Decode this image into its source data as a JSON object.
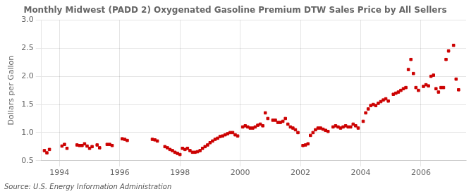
{
  "chart_data": {
    "type": "scatter",
    "title": "Monthly Midwest (PADD 2) Oxygenated Gasoline Premium DTW Sales Price by All Sellers",
    "y_label": "Dollars per Gallon",
    "annotations": [
      "Source: U.S. Energy Information Administration"
    ],
    "color": "#cc0000",
    "marker": "square",
    "grid": true,
    "xlim": [
      1993.4,
      2007.5
    ],
    "xticks": [
      1994,
      1996,
      1998,
      2000,
      2002,
      2004,
      2006
    ],
    "ylim": [
      0.5,
      3.0
    ],
    "yticks": [
      0.5,
      {
        "value": 1.0,
        "label": "1.0"
      },
      1.5,
      {
        "value": 2.0,
        "label": "2.0"
      },
      2.5,
      {
        "value": 3.0,
        "label": "3.0"
      }
    ],
    "x": [
      1993.5,
      1993.583,
      1993.667,
      1994.083,
      1994.167,
      1994.25,
      1994.583,
      1994.667,
      1994.75,
      1994.833,
      1994.917,
      1995.0,
      1995.083,
      1995.25,
      1995.333,
      1995.583,
      1995.667,
      1995.75,
      1996.083,
      1996.167,
      1996.25,
      1997.083,
      1997.167,
      1997.25,
      1997.5,
      1997.583,
      1997.667,
      1997.75,
      1997.833,
      1997.917,
      1998.0,
      1998.083,
      1998.167,
      1998.25,
      1998.333,
      1998.417,
      1998.5,
      1998.583,
      1998.667,
      1998.75,
      1998.833,
      1998.917,
      1999.0,
      1999.083,
      1999.167,
      1999.25,
      1999.333,
      1999.417,
      1999.5,
      1999.583,
      1999.667,
      1999.75,
      1999.833,
      1999.917,
      2000.083,
      2000.167,
      2000.25,
      2000.333,
      2000.417,
      2000.5,
      2000.583,
      2000.667,
      2000.75,
      2000.833,
      2000.917,
      2001.083,
      2001.167,
      2001.25,
      2001.333,
      2001.417,
      2001.5,
      2001.583,
      2001.667,
      2001.75,
      2001.833,
      2001.917,
      2002.083,
      2002.167,
      2002.25,
      2002.333,
      2002.417,
      2002.5,
      2002.583,
      2002.667,
      2002.75,
      2002.833,
      2002.917,
      2003.083,
      2003.167,
      2003.25,
      2003.333,
      2003.417,
      2003.5,
      2003.583,
      2003.667,
      2003.75,
      2003.833,
      2003.917,
      2004.083,
      2004.167,
      2004.25,
      2004.333,
      2004.417,
      2004.5,
      2004.583,
      2004.667,
      2004.75,
      2004.833,
      2004.917,
      2005.083,
      2005.167,
      2005.25,
      2005.333,
      2005.417,
      2005.5,
      2005.583,
      2005.667,
      2005.75,
      2005.833,
      2005.917,
      2006.083,
      2006.167,
      2006.25,
      2006.333,
      2006.417,
      2006.5,
      2006.583,
      2006.667,
      2006.75,
      2006.833,
      2006.917,
      2007.083,
      2007.167,
      2007.25
    ],
    "values": [
      0.68,
      0.64,
      0.7,
      0.76,
      0.79,
      0.72,
      0.78,
      0.77,
      0.77,
      0.8,
      0.76,
      0.72,
      0.75,
      0.78,
      0.73,
      0.79,
      0.79,
      0.77,
      0.89,
      0.88,
      0.86,
      0.88,
      0.87,
      0.85,
      0.75,
      0.73,
      0.7,
      0.68,
      0.65,
      0.63,
      0.61,
      0.72,
      0.7,
      0.72,
      0.68,
      0.65,
      0.65,
      0.66,
      0.68,
      0.72,
      0.75,
      0.78,
      0.82,
      0.85,
      0.88,
      0.9,
      0.93,
      0.94,
      0.96,
      0.98,
      1.0,
      1.0,
      0.96,
      0.94,
      1.1,
      1.12,
      1.1,
      1.08,
      1.08,
      1.1,
      1.13,
      1.15,
      1.12,
      1.35,
      1.25,
      1.22,
      1.22,
      1.18,
      1.18,
      1.2,
      1.25,
      1.15,
      1.1,
      1.08,
      1.05,
      1.0,
      0.77,
      0.78,
      0.8,
      0.95,
      1.0,
      1.05,
      1.08,
      1.08,
      1.06,
      1.04,
      1.02,
      1.1,
      1.12,
      1.1,
      1.08,
      1.1,
      1.12,
      1.1,
      1.1,
      1.15,
      1.12,
      1.08,
      1.2,
      1.35,
      1.42,
      1.48,
      1.5,
      1.48,
      1.52,
      1.55,
      1.58,
      1.6,
      1.56,
      1.68,
      1.7,
      1.72,
      1.75,
      1.78,
      1.8,
      2.12,
      2.3,
      2.05,
      1.8,
      1.75,
      1.82,
      1.85,
      1.83,
      2.0,
      2.02,
      1.78,
      1.72,
      1.8,
      1.8,
      2.3,
      2.45,
      2.55,
      1.95,
      1.76
    ]
  }
}
